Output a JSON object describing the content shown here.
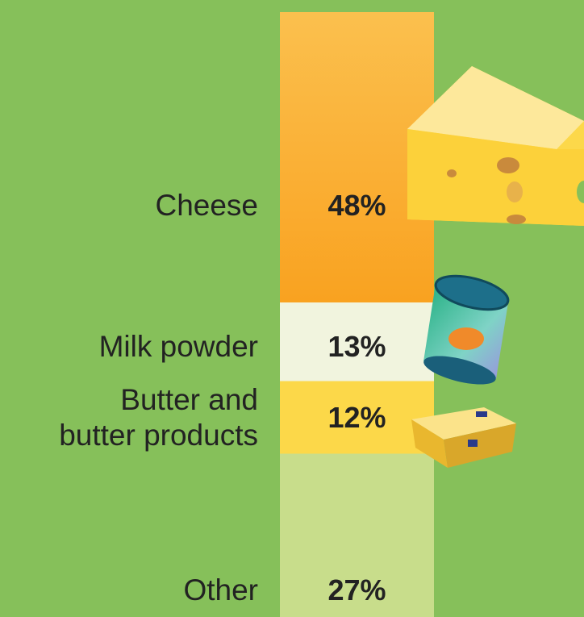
{
  "chart_data": {
    "type": "stacked-bar",
    "categories": [
      "Cheese",
      "Milk powder",
      "Butter and\nbutter products",
      "Other"
    ],
    "series": [
      {
        "values": [
          48,
          13,
          12,
          27
        ],
        "value_labels": [
          "48%",
          "13%",
          "12%",
          "27%"
        ],
        "colors": [
          "#f9a623",
          "#f1f4de",
          "#fcd849",
          "#c8dd8b"
        ]
      }
    ]
  }
}
